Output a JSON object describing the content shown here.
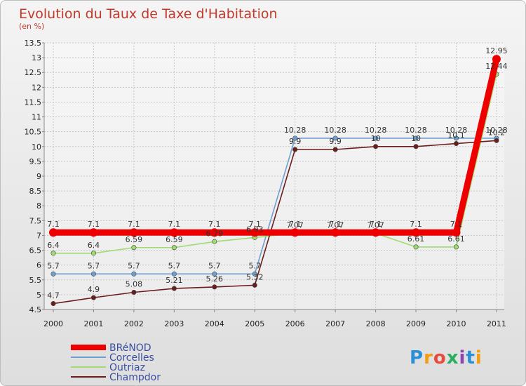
{
  "chart_data": {
    "type": "line",
    "title": "Evolution du Taux de Taxe d'Habitation",
    "subtitle": "(en %)",
    "xlabel": "",
    "ylabel": "",
    "ylim": [
      4.5,
      13.5
    ],
    "ystep": 0.5,
    "grid": true,
    "legend_position": "bottom-left",
    "x": [
      "2000",
      "2001",
      "2002",
      "2003",
      "2004",
      "2005",
      "2006",
      "2007",
      "2008",
      "2009",
      "2010",
      "2011"
    ],
    "y_ticks": [
      "4.5",
      "5",
      "5.5",
      "6",
      "6.5",
      "7",
      "7.5",
      "8",
      "8.5",
      "9",
      "9.5",
      "10",
      "10.5",
      "11",
      "11.5",
      "12",
      "12.5",
      "13",
      "13.5"
    ],
    "series": [
      {
        "name": "BRéNOD",
        "color": "#ee0000",
        "values": [
          7.1,
          7.1,
          7.1,
          7.1,
          7.1,
          7.1,
          7.1,
          7.1,
          7.1,
          7.1,
          7.1,
          12.95
        ],
        "labels": [
          "7.1",
          "7.1",
          "7.1",
          "7.1",
          "7.1",
          "7.1",
          "7.1",
          "7.1",
          "7.1",
          "7.1",
          "7.1",
          "12.95"
        ]
      },
      {
        "name": "Corcelles",
        "color": "#6f9fcf",
        "values": [
          5.7,
          5.7,
          5.7,
          5.7,
          5.7,
          5.7,
          10.28,
          10.28,
          10.28,
          10.28,
          10.28,
          10.28
        ],
        "labels": [
          "5.7",
          "5.7",
          "5.7",
          "5.7",
          "5.7",
          "5.7",
          "10.28",
          "10.28",
          "10.28",
          "10.28",
          "10.28",
          "10.28"
        ]
      },
      {
        "name": "Outriaz",
        "color": "#9edc70",
        "values": [
          6.4,
          6.4,
          6.59,
          6.59,
          6.79,
          6.93,
          7.07,
          7.07,
          7.07,
          6.61,
          6.61,
          12.44
        ],
        "labels": [
          "6.4",
          "6.4",
          "6.59",
          "6.59",
          "6.79",
          "6.93",
          "7.07",
          "7.07",
          "7.07",
          "6.61",
          "6.61",
          "12.44"
        ]
      },
      {
        "name": "Champdor",
        "color": "#6b1d1d",
        "values": [
          4.7,
          4.9,
          5.08,
          5.21,
          5.26,
          5.32,
          9.9,
          9.9,
          10,
          10,
          10.1,
          10.2
        ],
        "labels": [
          "4.7",
          "4.9",
          "5.08",
          "5.21",
          "5.26",
          "5.32",
          "9.9",
          "9.9",
          "10",
          "10",
          "10.1",
          "10.2"
        ]
      }
    ]
  },
  "logo": {
    "text": "Proxiti",
    "letters": [
      {
        "ch": "P",
        "color": "#2b8fd6"
      },
      {
        "ch": "r",
        "color": "#f39c12"
      },
      {
        "ch": "o",
        "color": "#e74c3c"
      },
      {
        "ch": "x",
        "color": "#27ae60"
      },
      {
        "ch": "i",
        "color": "#8e44ad"
      },
      {
        "ch": "t",
        "color": "#2b8fd6"
      },
      {
        "ch": "i",
        "color": "#f39c12"
      }
    ]
  }
}
